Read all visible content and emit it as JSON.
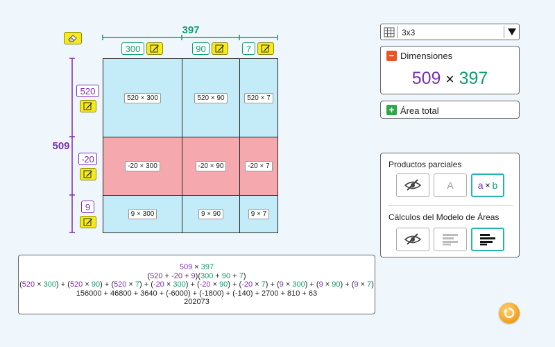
{
  "top_total": "397",
  "left_total": "509",
  "top_dims": [
    "300",
    "90",
    "7"
  ],
  "left_dims": [
    "520",
    "-20",
    "9"
  ],
  "cells": [
    [
      "520 × 300",
      "520 × 90",
      "520 × 7"
    ],
    [
      "-20 × 300",
      "-20 × 90",
      "-20 × 7"
    ],
    [
      "9 × 300",
      "9 × 90",
      "9 × 7"
    ]
  ],
  "grid_select": {
    "label": "3x3"
  },
  "dimensions_panel": {
    "title": "Dimensiones",
    "a": "509",
    "times": "×",
    "b": "397"
  },
  "area_total_panel": {
    "title": "Área total"
  },
  "options_panel": {
    "partial_products_title": "Productos parciales",
    "letter_a": "A",
    "ab_a": "a",
    "ab_times": "×",
    "ab_b": "b",
    "area_model_title": "Cálculos del Modelo de Áreas"
  },
  "formula": {
    "line1": {
      "a": "509",
      "times": "×",
      "b": "397"
    },
    "line2": {
      "open": "(",
      "a1": "520",
      "p1": " + ",
      "a2": "-20",
      "p2": " + ",
      "a3": "9",
      "mid": ")(",
      "b1": "300",
      "p3": " + ",
      "b2": "90",
      "p4": " + ",
      "b3": "7",
      "close": ")"
    },
    "line3": [
      [
        "520",
        "300"
      ],
      [
        "520",
        "90"
      ],
      [
        "520",
        "7"
      ],
      [
        "-20",
        "300"
      ],
      [
        "-20",
        "90"
      ],
      [
        "-20",
        "7"
      ],
      [
        "9",
        "300"
      ],
      [
        "9",
        "90"
      ],
      [
        "9",
        "7"
      ]
    ],
    "line4": "156000 + 46800 + 3640 + (-6000) + (-1800) + (-140) + 2700 + 810 + 63",
    "line5": "202073"
  },
  "colors": {
    "purple": "#7a2fb0",
    "green": "#0e9e6e",
    "pink": "#f5a9ae",
    "blue": "#c3ecf8",
    "yellow": "#f6ea1c",
    "orange": "#f5a623"
  },
  "icons": [
    "eraser-icon",
    "pencil-icon",
    "grid-icon",
    "minus-icon",
    "plus-icon",
    "eye-slash-icon",
    "lines-icon",
    "reset-icon",
    "dropdown-arrow-icon"
  ]
}
